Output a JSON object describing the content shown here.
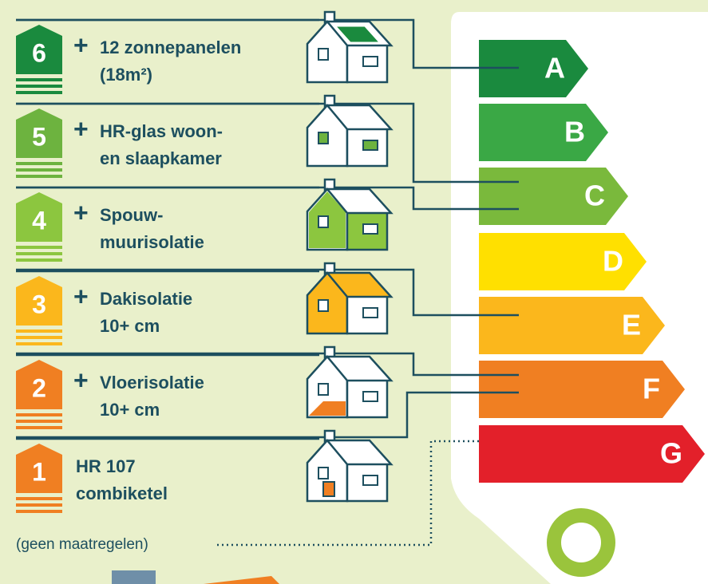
{
  "steps": [
    {
      "number": "6",
      "prefix": "+",
      "lines": [
        "12 zonnepanelen",
        "(18m²)"
      ],
      "color": "#1a8a3e"
    },
    {
      "number": "5",
      "prefix": "+",
      "lines": [
        "HR-glas woon-",
        "en slaapkamer"
      ],
      "color": "#6db33f"
    },
    {
      "number": "4",
      "prefix": "+",
      "lines": [
        "Spouw-",
        "muurisolatie"
      ],
      "color": "#8cc63f"
    },
    {
      "number": "3",
      "prefix": "+",
      "lines": [
        "Dakisolatie",
        "10+ cm"
      ],
      "color": "#fbb71c"
    },
    {
      "number": "2",
      "prefix": "+",
      "lines": [
        "Vloerisolatie",
        "10+ cm"
      ],
      "color": "#f07f22"
    },
    {
      "number": "1",
      "lines": [
        "HR 107",
        "combiketel"
      ],
      "color": "#f07f22"
    }
  ],
  "labels": [
    {
      "letter": "A",
      "color": "#1a8a3e"
    },
    {
      "letter": "B",
      "color": "#3aa845"
    },
    {
      "letter": "C",
      "color": "#7ab93c"
    },
    {
      "letter": "D",
      "color": "#ffe000"
    },
    {
      "letter": "E",
      "color": "#fbb71c"
    },
    {
      "letter": "F",
      "color": "#f07f22"
    },
    {
      "letter": "G",
      "color": "#e3202a"
    }
  ],
  "baseline": "(geen maatregelen)"
}
